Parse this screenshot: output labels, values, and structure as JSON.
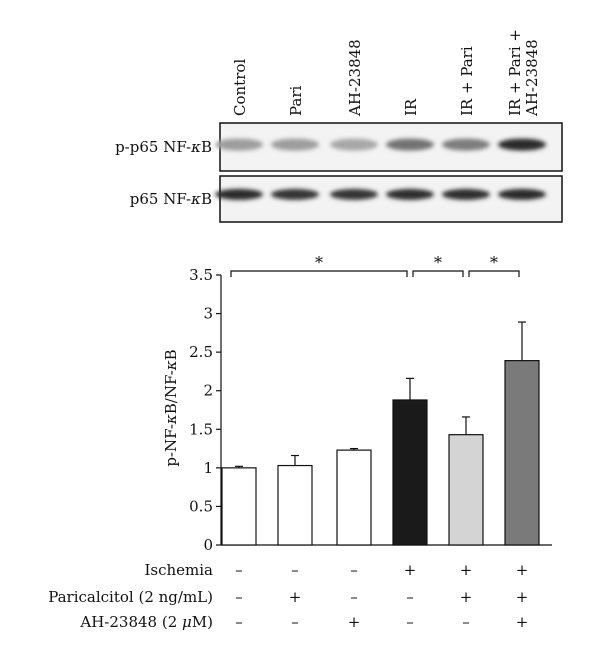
{
  "blot": {
    "lanes": [
      "Control",
      "Pari",
      "AH-23848",
      "IR",
      "IR + Pari",
      "IR + Pari +\nAH-23848"
    ],
    "rows": [
      {
        "label_main": "p-p65 NF-",
        "label_kappa": "κ",
        "label_tail": "B",
        "intensity": [
          0.35,
          0.35,
          0.3,
          0.55,
          0.5,
          0.9
        ]
      },
      {
        "label_main": "p65 NF-",
        "label_kappa": "κ",
        "label_tail": "B",
        "intensity": [
          0.9,
          0.85,
          0.85,
          0.88,
          0.88,
          0.9
        ]
      }
    ]
  },
  "chart_data": {
    "type": "bar",
    "categories": [
      "Control",
      "Pari",
      "AH-23848",
      "IR",
      "IR + Pari",
      "IR + Pari + AH-23848"
    ],
    "values": [
      1.0,
      1.03,
      1.23,
      1.88,
      1.43,
      2.39
    ],
    "errors": [
      0.02,
      0.13,
      0.02,
      0.28,
      0.23,
      0.5
    ],
    "bar_colors": [
      "#ffffff",
      "#ffffff",
      "#ffffff",
      "#1a1a1a",
      "#d4d4d4",
      "#7a7a7a"
    ],
    "ylabel_main": "p-NF-",
    "ylabel_kappa": "κ",
    "ylabel_mid": "B/NF-",
    "ylabel_kappa2": "κ",
    "ylabel_tail": "B",
    "ylim": [
      0,
      3.5
    ],
    "yticks": [
      "0",
      "0.5",
      "1",
      "1.5",
      "2",
      "2.5",
      "3",
      "3.5"
    ],
    "significance": [
      {
        "from": 0,
        "to": 3,
        "label": "*"
      },
      {
        "from": 3,
        "to": 4,
        "label": "*"
      },
      {
        "from": 4,
        "to": 5,
        "label": "*"
      }
    ],
    "grid": false
  },
  "treatments": [
    {
      "label": "Ischemia",
      "signs": [
        "–",
        "–",
        "–",
        "+",
        "+",
        "+"
      ]
    },
    {
      "label": "Paricalcitol (2 ng/mL)",
      "signs": [
        "–",
        "+",
        "–",
        "–",
        "+",
        "+"
      ]
    },
    {
      "label_main": "AH-23848 (2 ",
      "label_mu": "μ",
      "label_tail": "M)",
      "signs": [
        "–",
        "–",
        "+",
        "–",
        "–",
        "+"
      ]
    }
  ]
}
